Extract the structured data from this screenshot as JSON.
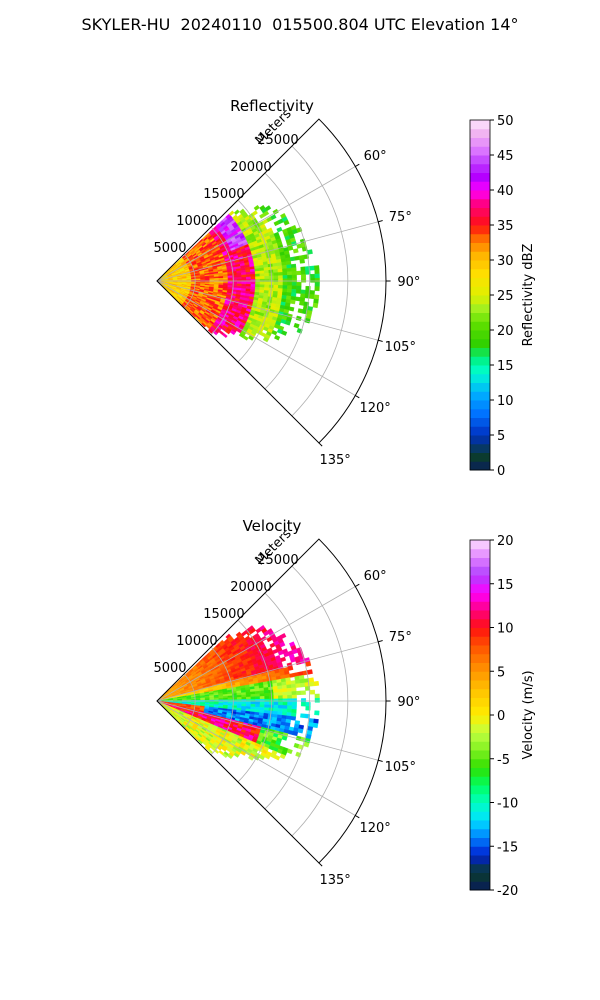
{
  "figure": {
    "title": "SKYLER-HU  20240110  015500.804 UTC Elevation 14°"
  },
  "chart_data": [
    {
      "type": "heatmap",
      "subtype": "polar-sector (PPI radar scan)",
      "title": "Reflectivity",
      "radial_label": "Meters",
      "radial_ticks": [
        5000,
        10000,
        15000,
        20000,
        25000
      ],
      "radial_range": [
        0,
        30000
      ],
      "angle_ticks": [
        "60°",
        "75°",
        "90°",
        "105°",
        "120°",
        "135°"
      ],
      "angle_range_deg": [
        45,
        135
      ],
      "grid": true,
      "colorbar": {
        "label": "Reflectivity dBZ",
        "min": 0,
        "max": 50,
        "ticks": [
          0,
          5,
          10,
          15,
          20,
          25,
          30,
          35,
          40,
          45,
          50
        ],
        "position": "right"
      },
      "data_extent_m": [
        0,
        21000
      ],
      "features": [
        {
          "range_m": [
            0,
            4000
          ],
          "value_dbz": 28
        },
        {
          "range_m": [
            4000,
            9000
          ],
          "value_dbz": 33
        },
        {
          "range_m": [
            9000,
            12500
          ],
          "value_dbz": 36
        },
        {
          "range_m": [
            12500,
            16000
          ],
          "value_dbz": 23
        },
        {
          "range_m": [
            16000,
            21000
          ],
          "value_dbz": 18
        }
      ]
    },
    {
      "type": "heatmap",
      "subtype": "polar-sector (PPI radar scan)",
      "title": "Velocity",
      "radial_label": "Meters",
      "radial_ticks": [
        5000,
        10000,
        15000,
        20000,
        25000
      ],
      "radial_range": [
        0,
        30000
      ],
      "angle_ticks": [
        "60°",
        "75°",
        "90°",
        "105°",
        "120°",
        "135°"
      ],
      "angle_range_deg": [
        45,
        135
      ],
      "grid": true,
      "colorbar": {
        "label": "Velocity (m/s)",
        "min": -20,
        "max": 20,
        "ticks": [
          -20,
          -15,
          -10,
          -5,
          0,
          5,
          10,
          15,
          20
        ],
        "position": "right"
      },
      "data_extent_m": [
        0,
        21000
      ],
      "features": [
        {
          "azimuth_deg": [
            50,
            80
          ],
          "value_ms": 5
        },
        {
          "azimuth_deg": [
            80,
            95
          ],
          "value_ms": -6
        },
        {
          "azimuth_deg": [
            95,
            105
          ],
          "value_ms": -12
        },
        {
          "azimuth_deg": [
            105,
            125
          ],
          "value_ms": 8
        }
      ]
    }
  ]
}
